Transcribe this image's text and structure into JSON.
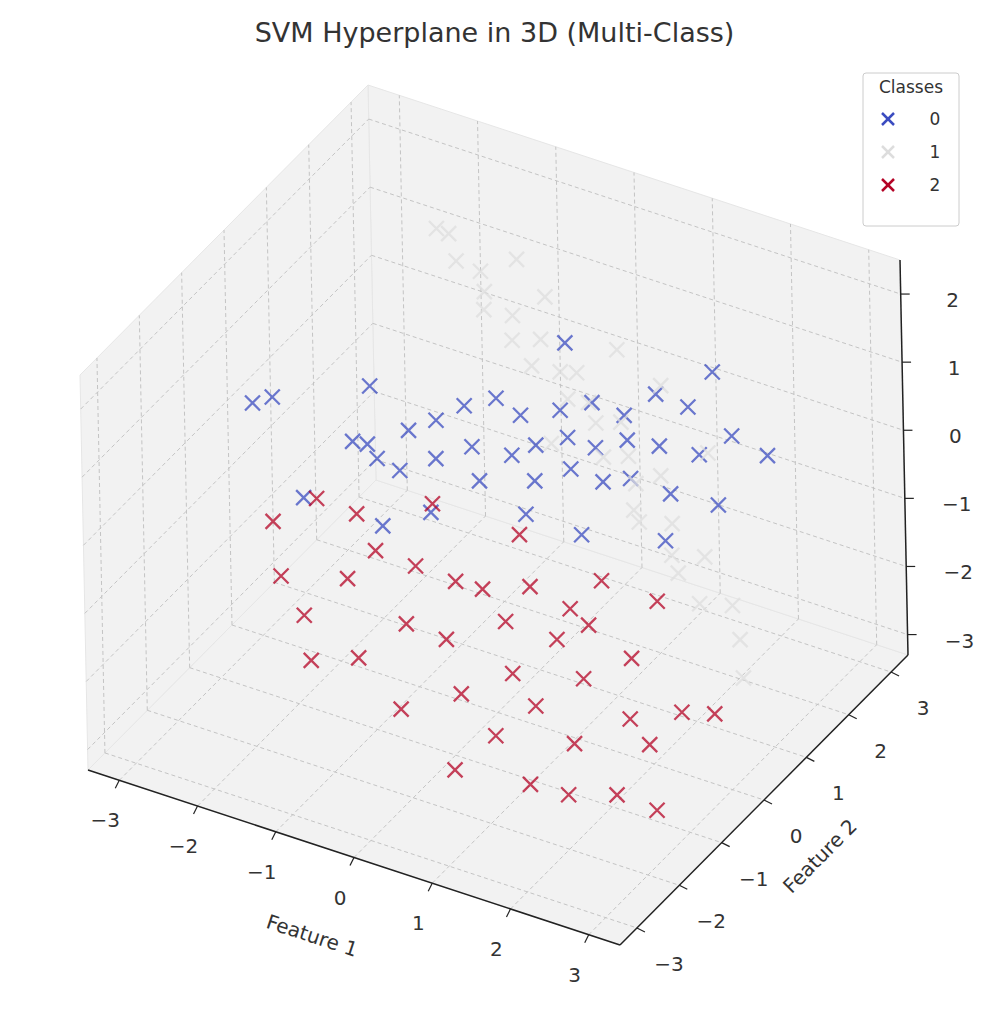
{
  "chart_data": {
    "type": "scatter3d",
    "title": "SVM Hyperplane in 3D (Multi-Class)",
    "xlabel": "Feature 1",
    "ylabel": "Feature 2",
    "legend_title": "Classes",
    "legend": "upper right",
    "marker": "x",
    "grid": true,
    "xlim": [
      -3.4,
      3.4
    ],
    "ylim": [
      -3.4,
      3.4
    ],
    "zlim": [
      -3.3,
      2.5
    ],
    "xticks": [
      {
        "value": -3,
        "label": "−3"
      },
      {
        "value": -2,
        "label": "−2"
      },
      {
        "value": -1,
        "label": "−1"
      },
      0,
      1,
      2,
      3
    ],
    "yticks": [
      {
        "value": -3,
        "label": "−3"
      },
      {
        "value": -2,
        "label": "−2"
      },
      {
        "value": -1,
        "label": "−1"
      },
      0,
      1,
      2,
      3
    ],
    "zticks": [
      {
        "value": -3,
        "label": "−3"
      },
      {
        "value": -2,
        "label": "−2"
      },
      {
        "value": -1,
        "label": "−1"
      },
      0,
      1,
      2
    ],
    "series": [
      {
        "name": "0",
        "color": "#3b4cc0",
        "x": [
          -2.8,
          -2.6,
          -1.8,
          -1.6,
          -1.5,
          -1.3,
          -1.2,
          -1.0,
          -0.9,
          -0.8,
          -0.6,
          -0.5,
          -0.4,
          -0.3,
          -0.2,
          0.0,
          0.1,
          0.2,
          0.3,
          0.4,
          0.5,
          0.6,
          0.7,
          0.8,
          0.9,
          1.0,
          1.1,
          1.2,
          1.3,
          1.5,
          1.6,
          1.8,
          2.0,
          -1.1,
          -2.0,
          -0.7,
          0.3,
          1.4,
          -1.9,
          0.9,
          2.2,
          -0.1,
          1.7
        ],
        "y": [
          -0.5,
          -0.4,
          0.0,
          0.2,
          -0.2,
          0.4,
          0.0,
          0.5,
          0.3,
          0.8,
          0.6,
          1.0,
          0.4,
          1.2,
          0.8,
          1.0,
          1.4,
          0.6,
          1.2,
          1.6,
          0.9,
          1.3,
          1.8,
          1.1,
          1.5,
          2.0,
          1.2,
          1.7,
          2.2,
          1.4,
          1.9,
          2.3,
          1.6,
          -0.6,
          -0.8,
          -0.2,
          0.2,
          2.6,
          0.6,
          0.4,
          2.4,
          1.9,
          0.9
        ],
        "z": [
          0.5,
          0.6,
          0.0,
          -0.3,
          0.2,
          0.1,
          -0.2,
          0.3,
          -0.1,
          0.4,
          0.0,
          0.5,
          -0.3,
          0.2,
          -0.1,
          0.0,
          0.3,
          -0.2,
          0.1,
          0.4,
          -0.1,
          0.0,
          0.2,
          -0.3,
          0.1,
          0.5,
          -0.2,
          0.0,
          0.3,
          -0.4,
          -0.1,
          0.0,
          -0.5,
          -0.6,
          -0.4,
          -0.5,
          -0.4,
          0.6,
          0.4,
          -0.6,
          -0.2,
          0.9,
          -0.7
        ]
      },
      {
        "name": "1",
        "color": "#dddddd",
        "x": [
          -1.5,
          -1.4,
          -1.2,
          -1.0,
          -0.9,
          -0.8,
          -0.6,
          -0.5,
          -0.3,
          -0.2,
          0.0,
          0.1,
          0.2,
          0.3,
          0.5,
          0.6,
          0.7,
          0.8,
          1.0,
          1.1,
          1.2,
          1.4,
          1.5,
          1.7,
          1.9,
          2.1,
          2.3,
          0.4,
          -0.4,
          0.9,
          1.3,
          1.6,
          0.2,
          -0.7,
          1.8,
          2.5
        ],
        "y": [
          1.5,
          1.6,
          1.4,
          1.6,
          1.5,
          1.3,
          1.6,
          1.4,
          1.7,
          1.3,
          1.6,
          1.8,
          1.4,
          1.7,
          1.5,
          1.9,
          1.3,
          1.7,
          1.5,
          1.9,
          1.2,
          1.6,
          1.4,
          1.8,
          1.3,
          1.7,
          1.5,
          2.2,
          2.0,
          2.3,
          0.9,
          2.1,
          1.0,
          1.9,
          1.0,
          1.2
        ],
        "z": [
          2.3,
          2.2,
          2.0,
          1.8,
          1.6,
          1.5,
          1.3,
          1.1,
          1.0,
          0.9,
          0.7,
          0.6,
          0.5,
          0.3,
          0.2,
          0.0,
          -0.1,
          -0.3,
          -0.5,
          -0.6,
          -0.8,
          -1.0,
          -1.3,
          -1.5,
          -1.8,
          -2.0,
          -2.3,
          0.8,
          1.4,
          0.4,
          -0.4,
          -0.2,
          0.1,
          1.9,
          -1.2,
          -2.6
        ]
      },
      {
        "name": "2",
        "color": "#b40426",
        "x": [
          -2.4,
          -2.2,
          -2.0,
          -1.8,
          -1.6,
          -1.4,
          -1.2,
          -1.0,
          -0.8,
          -0.6,
          -0.4,
          -0.2,
          0.0,
          0.2,
          0.4,
          0.5,
          0.7,
          0.8,
          1.0,
          1.1,
          1.3,
          1.4,
          1.5,
          1.7,
          1.9,
          2.0,
          2.2,
          2.4,
          2.5,
          2.7,
          2.8,
          1.2,
          0.1,
          -0.9,
          1.8,
          0.6,
          -0.3,
          2.9,
          0.9,
          -1.5
        ],
        "y": [
          -0.8,
          -1.0,
          -0.5,
          -1.2,
          -0.3,
          -0.9,
          -0.6,
          -1.4,
          -0.4,
          -1.0,
          -0.2,
          -0.8,
          -0.3,
          -1.2,
          -0.5,
          -0.1,
          -0.9,
          -1.5,
          -0.4,
          -1.1,
          -0.2,
          -1.8,
          -0.7,
          -1.3,
          -0.3,
          -2.0,
          -0.9,
          -1.6,
          -1.0,
          -0.6,
          -1.4,
          0.3,
          0.4,
          0.2,
          0.5,
          -2.1,
          -1.7,
          -0.2,
          0.1,
          -1.6
        ],
        "z": [
          -0.9,
          -1.5,
          -0.6,
          -1.8,
          -0.8,
          -1.3,
          -1.0,
          -2.0,
          -1.2,
          -1.6,
          -1.4,
          -1.8,
          -1.3,
          -2.2,
          -1.5,
          -1.2,
          -1.9,
          -2.4,
          -1.6,
          -2.1,
          -1.4,
          -2.7,
          -1.8,
          -2.3,
          -1.6,
          -2.5,
          -2.0,
          -2.6,
          -2.2,
          -1.9,
          -2.8,
          -1.1,
          -0.9,
          -0.7,
          -1.3,
          -2.6,
          -2.3,
          -2.1,
          -1.5,
          -2.1
        ]
      }
    ]
  }
}
